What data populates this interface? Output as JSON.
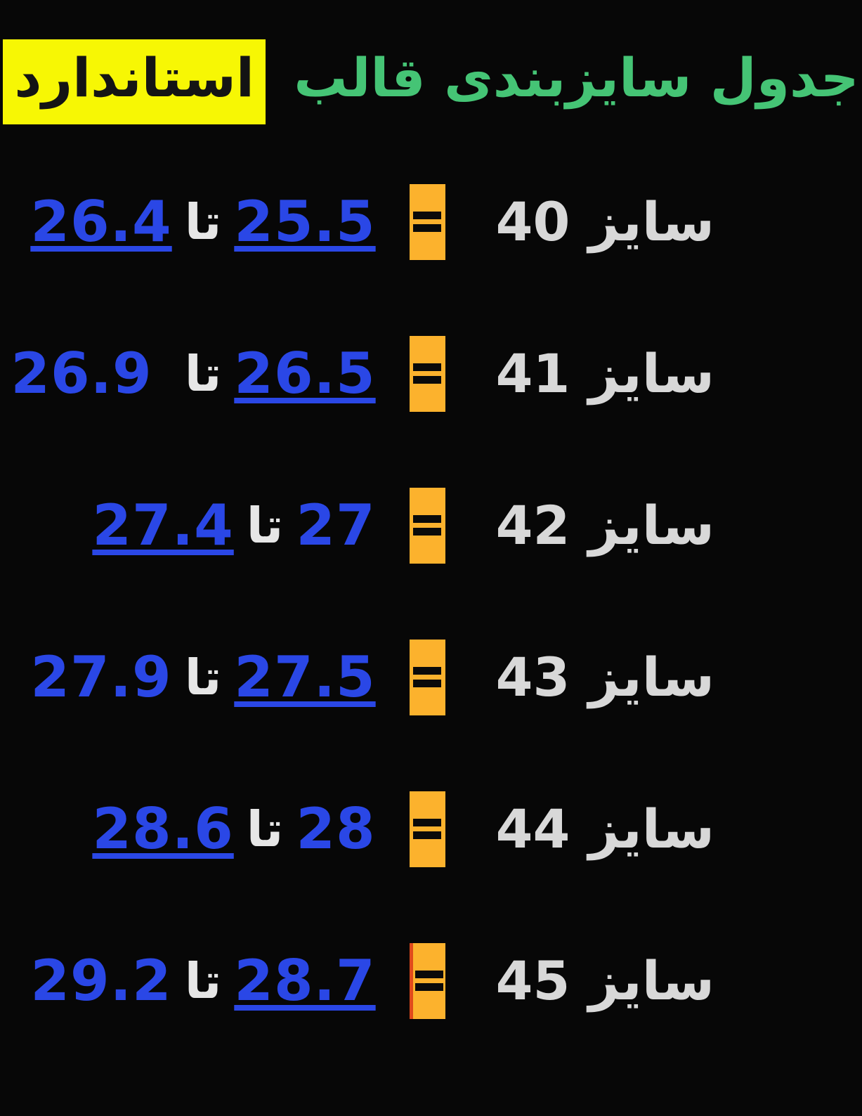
{
  "title": {
    "text_green": "جدول سایزبندی قالب",
    "text_highlight": "استاندارد"
  },
  "labels": {
    "to_word": "تا"
  },
  "icons": {
    "equals_icon": "="
  },
  "colors": {
    "background": "#070707",
    "title_green": "#45c475",
    "highlight_yellow": "#f7f704",
    "highlight_text": "#141414",
    "value_blue": "#2a47e6",
    "equals_box_orange": "#fcb22d",
    "equals_box_red_edge": "#e04a1c",
    "size_label_gray": "#d8d8d8",
    "separator_white": "#e6e6e6"
  },
  "rows": [
    {
      "size_label": "سایز 40",
      "from": "25.5",
      "to": "26.4",
      "from_underlined": true,
      "to_underlined": true
    },
    {
      "size_label": "سایز 41",
      "from": "26.5",
      "to": "26.9",
      "from_underlined": true,
      "to_underlined": false
    },
    {
      "size_label": "سایز 42",
      "from": "27",
      "to": "27.4",
      "from_underlined": false,
      "to_underlined": true
    },
    {
      "size_label": "سایز 43",
      "from": "27.5",
      "to": "27.9",
      "from_underlined": true,
      "to_underlined": false
    },
    {
      "size_label": "سایز 44",
      "from": "28",
      "to": "28.6",
      "from_underlined": false,
      "to_underlined": true
    },
    {
      "size_label": "سایز 45",
      "from": "28.7",
      "to": "29.2",
      "from_underlined": true,
      "to_underlined": false
    }
  ]
}
